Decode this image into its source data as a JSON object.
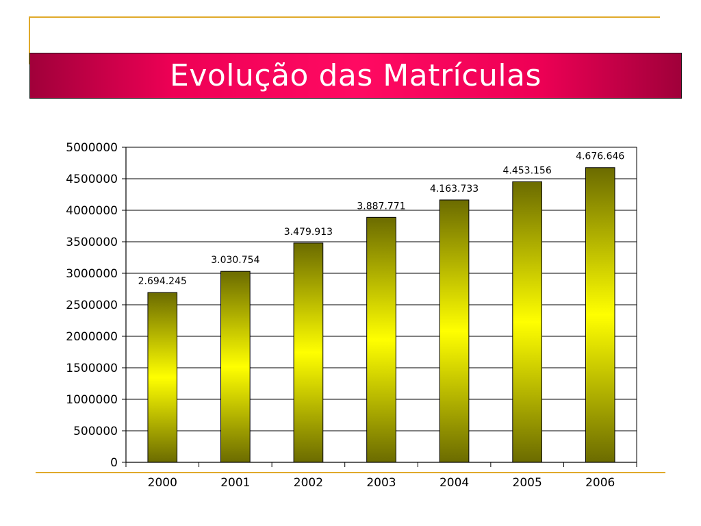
{
  "slide": {
    "title": "Evolução das Matrículas"
  },
  "chart_data": {
    "type": "bar",
    "categories": [
      "2000",
      "2001",
      "2002",
      "2003",
      "2004",
      "2005",
      "2006"
    ],
    "values": [
      2694245,
      3030754,
      3479913,
      3887771,
      4163733,
      4453156,
      4676646
    ],
    "data_labels": [
      "2.694.245",
      "3.030.754",
      "3.479.913",
      "3.887.771",
      "4.163.733",
      "4.453.156",
      "4.676.646"
    ],
    "title": "",
    "xlabel": "",
    "ylabel": "",
    "ylim": [
      0,
      5000000
    ],
    "y_ticks": [
      "0",
      "500000",
      "1000000",
      "1500000",
      "2000000",
      "2500000",
      "3000000",
      "3500000",
      "4000000",
      "4500000",
      "5000000"
    ],
    "grid": true,
    "legend": "none",
    "colors": {
      "bar_edge": "#6b6b00",
      "bar_center": "#ffff00",
      "bar_outline": "#000000",
      "grid": "#000000"
    }
  }
}
